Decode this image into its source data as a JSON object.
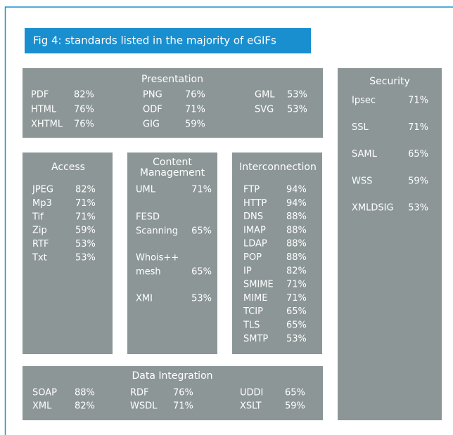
{
  "title": "Fig 4: standards listed in the majority of eGIFs",
  "presentation": {
    "title": "Presentation",
    "columns": [
      [
        {
          "name": "PDF",
          "value": "82%"
        },
        {
          "name": "HTML",
          "value": "76%"
        },
        {
          "name": "XHTML",
          "value": "76%"
        }
      ],
      [
        {
          "name": "PNG",
          "value": "76%"
        },
        {
          "name": "ODF",
          "value": "71%"
        },
        {
          "name": "GIG",
          "value": "59%"
        }
      ],
      [
        {
          "name": "GML",
          "value": "53%"
        },
        {
          "name": "SVG",
          "value": "53%"
        }
      ]
    ]
  },
  "security": {
    "title": "Security",
    "items": [
      {
        "name": "Ipsec",
        "value": "71%"
      },
      {
        "name": "SSL",
        "value": "71%"
      },
      {
        "name": "SAML",
        "value": "65%"
      },
      {
        "name": "WSS",
        "value": "59%"
      },
      {
        "name": "XMLDSIG",
        "value": "53%"
      }
    ]
  },
  "access": {
    "title": "Access",
    "items": [
      {
        "name": "JPEG",
        "value": "82%"
      },
      {
        "name": "Mp3",
        "value": "71%"
      },
      {
        "name": "Tif",
        "value": "71%"
      },
      {
        "name": "Zip",
        "value": "59%"
      },
      {
        "name": "RTF",
        "value": "53%"
      },
      {
        "name": "Txt",
        "value": "53%"
      }
    ]
  },
  "content_management": {
    "title": [
      "Content",
      "Management"
    ],
    "items": [
      {
        "name": [
          "UML"
        ],
        "value": "71%"
      },
      {
        "name": [
          "FESD",
          "Scanning"
        ],
        "value": "65%"
      },
      {
        "name": [
          "Whois++",
          "mesh"
        ],
        "value": "65%"
      },
      {
        "name": [
          "XMI"
        ],
        "value": "53%"
      }
    ]
  },
  "interconnection": {
    "title": "Interconnection",
    "items": [
      {
        "name": "FTP",
        "value": "94%"
      },
      {
        "name": "HTTP",
        "value": "94%"
      },
      {
        "name": "DNS",
        "value": "88%"
      },
      {
        "name": "IMAP",
        "value": "88%"
      },
      {
        "name": "LDAP",
        "value": "88%"
      },
      {
        "name": "POP",
        "value": "88%"
      },
      {
        "name": "IP",
        "value": "82%"
      },
      {
        "name": "SMIME",
        "value": "71%"
      },
      {
        "name": "MIME",
        "value": "71%"
      },
      {
        "name": "TCIP",
        "value": "65%"
      },
      {
        "name": "TLS",
        "value": "65%"
      },
      {
        "name": "SMTP",
        "value": "53%"
      }
    ]
  },
  "data_integration": {
    "title": "Data Integration",
    "columns": [
      [
        {
          "name": "SOAP",
          "value": "88%"
        },
        {
          "name": "XML",
          "value": "82%"
        }
      ],
      [
        {
          "name": "RDF",
          "value": "76%"
        },
        {
          "name": "WSDL",
          "value": "71%"
        }
      ],
      [
        {
          "name": "UDDI",
          "value": "65%"
        },
        {
          "name": "XSLT",
          "value": "59%"
        }
      ]
    ]
  }
}
